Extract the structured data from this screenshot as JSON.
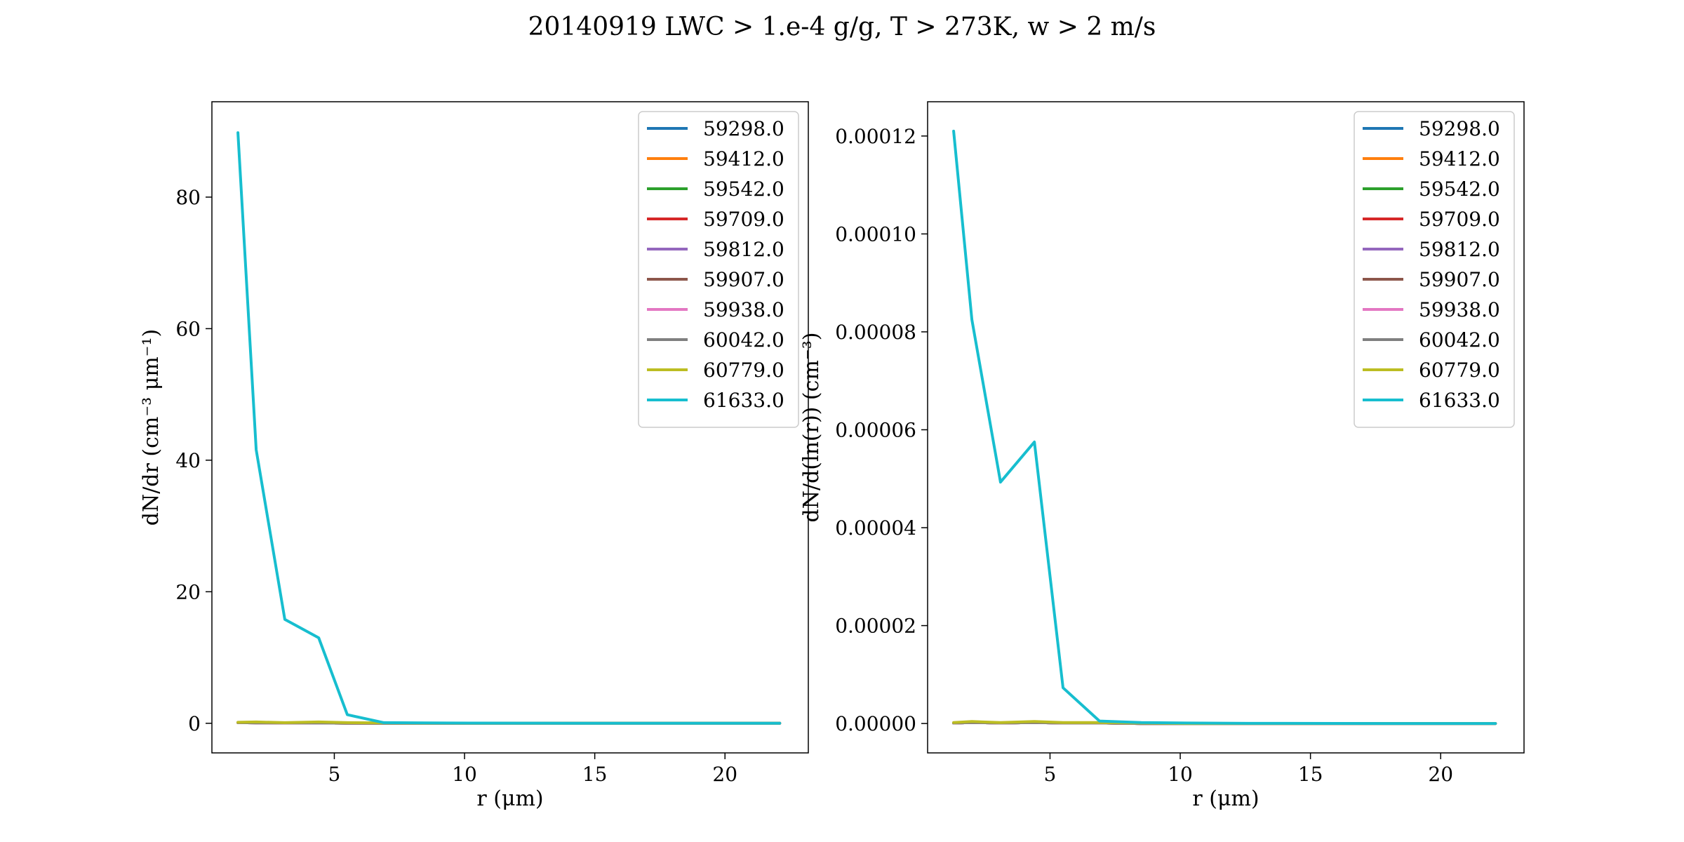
{
  "figure": {
    "title": "20140919 LWC > 1.e-4 g/g, T > 273K, w > 2 m/s"
  },
  "series_colors": [
    "#1f77b4",
    "#ff7f0e",
    "#2ca02c",
    "#d62728",
    "#9467bd",
    "#8c564b",
    "#e377c2",
    "#7f7f7f",
    "#bcbd22",
    "#17becf"
  ],
  "chart_data": [
    {
      "type": "line",
      "xlabel": "r (μm)",
      "ylabel": "dN/dr (cm⁻³ μm⁻¹)",
      "xlim": [
        0.3,
        23.2
      ],
      "ylim": [
        -4.5,
        94.5
      ],
      "xticks": [
        5,
        10,
        15,
        20
      ],
      "xtick_labels": [
        "5",
        "10",
        "15",
        "20"
      ],
      "yticks": [
        0,
        20,
        40,
        60,
        80
      ],
      "ytick_labels": [
        "0",
        "20",
        "40",
        "60",
        "80"
      ],
      "legend_position": "top-right",
      "x": [
        1.3,
        2.0,
        3.1,
        4.4,
        5.5,
        6.9,
        8.5,
        10.2,
        12.0,
        14.0,
        16.0,
        18.0,
        20.0,
        22.1
      ],
      "series": [
        {
          "name": "59298.0",
          "values": [
            0.1,
            0.1,
            0.05,
            0.05,
            0.02,
            0.01,
            0,
            0,
            0,
            0,
            0,
            0,
            0,
            0
          ]
        },
        {
          "name": "59412.0",
          "values": [
            0.1,
            0.08,
            0.05,
            0.04,
            0.02,
            0.01,
            0,
            0,
            0,
            0,
            0,
            0,
            0,
            0
          ]
        },
        {
          "name": "59542.0",
          "values": [
            0.1,
            0.08,
            0.05,
            0.04,
            0.02,
            0.01,
            0,
            0,
            0,
            0,
            0,
            0,
            0,
            0
          ]
        },
        {
          "name": "59709.0",
          "values": [
            0.1,
            0.08,
            0.05,
            0.04,
            0.02,
            0.01,
            0,
            0,
            0,
            0,
            0,
            0,
            0,
            0
          ]
        },
        {
          "name": "59812.0",
          "values": [
            0.1,
            0.08,
            0.05,
            0.04,
            0.02,
            0.01,
            0,
            0,
            0,
            0,
            0,
            0,
            0,
            0
          ]
        },
        {
          "name": "59907.0",
          "values": [
            0.1,
            0.08,
            0.05,
            0.04,
            0.02,
            0.01,
            0,
            0,
            0,
            0,
            0,
            0,
            0,
            0
          ]
        },
        {
          "name": "59938.0",
          "values": [
            0.1,
            0.08,
            0.05,
            0.04,
            0.02,
            0.01,
            0,
            0,
            0,
            0,
            0,
            0,
            0,
            0
          ]
        },
        {
          "name": "60042.0",
          "values": [
            0.1,
            0.08,
            0.05,
            0.04,
            0.02,
            0.01,
            0,
            0,
            0,
            0,
            0,
            0,
            0,
            0
          ]
        },
        {
          "name": "60779.0",
          "values": [
            0.15,
            0.2,
            0.1,
            0.2,
            0.1,
            0.05,
            0.02,
            0.01,
            0,
            0,
            0,
            0,
            0,
            0
          ]
        },
        {
          "name": "61633.0",
          "values": [
            89.8,
            41.6,
            15.8,
            13.0,
            1.3,
            0.1,
            0.05,
            0.03,
            0.02,
            0.01,
            0.01,
            0,
            0,
            0
          ]
        }
      ]
    },
    {
      "type": "line",
      "xlabel": "r (μm)",
      "ylabel": "dN/d(ln(r)) (cm⁻³)",
      "xlim": [
        0.3,
        23.2
      ],
      "ylim": [
        -6e-06,
        0.000127
      ],
      "xticks": [
        5,
        10,
        15,
        20
      ],
      "xtick_labels": [
        "5",
        "10",
        "15",
        "20"
      ],
      "yticks": [
        0,
        2e-05,
        4e-05,
        6e-05,
        8e-05,
        0.0001,
        0.00012
      ],
      "ytick_labels": [
        "0.00000",
        "0.00002",
        "0.00004",
        "0.00006",
        "0.00008",
        "0.00010",
        "0.00012"
      ],
      "legend_position": "top-right",
      "x": [
        1.3,
        2.0,
        3.1,
        4.4,
        5.5,
        6.9,
        8.5,
        10.2,
        12.0,
        14.0,
        16.0,
        18.0,
        20.0,
        22.1
      ],
      "series": [
        {
          "name": "59298.0",
          "values": [
            1e-07,
            2e-07,
            1e-07,
            2e-07,
            1e-07,
            1e-07,
            0,
            0,
            0,
            0,
            0,
            0,
            0,
            0
          ]
        },
        {
          "name": "59412.0",
          "values": [
            1e-07,
            2e-07,
            1e-07,
            2e-07,
            1e-07,
            1e-07,
            0,
            0,
            0,
            0,
            0,
            0,
            0,
            0
          ]
        },
        {
          "name": "59542.0",
          "values": [
            1e-07,
            2e-07,
            1e-07,
            2e-07,
            1e-07,
            1e-07,
            0,
            0,
            0,
            0,
            0,
            0,
            0,
            0
          ]
        },
        {
          "name": "59709.0",
          "values": [
            1e-07,
            2e-07,
            1e-07,
            2e-07,
            1e-07,
            1e-07,
            0,
            0,
            0,
            0,
            0,
            0,
            0,
            0
          ]
        },
        {
          "name": "59812.0",
          "values": [
            1e-07,
            2e-07,
            1e-07,
            2e-07,
            1e-07,
            1e-07,
            0,
            0,
            0,
            0,
            0,
            0,
            0,
            0
          ]
        },
        {
          "name": "59907.0",
          "values": [
            1e-07,
            2e-07,
            1e-07,
            2e-07,
            1e-07,
            1e-07,
            0,
            0,
            0,
            0,
            0,
            0,
            0,
            0
          ]
        },
        {
          "name": "59938.0",
          "values": [
            1e-07,
            2e-07,
            1e-07,
            2e-07,
            1e-07,
            1e-07,
            0,
            0,
            0,
            0,
            0,
            0,
            0,
            0
          ]
        },
        {
          "name": "60042.0",
          "values": [
            1e-07,
            2e-07,
            1e-07,
            2e-07,
            1e-07,
            1e-07,
            0,
            0,
            0,
            0,
            0,
            0,
            0,
            0
          ]
        },
        {
          "name": "60779.0",
          "values": [
            2e-07,
            4e-07,
            2e-07,
            4e-07,
            2e-07,
            2e-07,
            1e-07,
            0,
            0,
            0,
            0,
            0,
            0,
            0
          ]
        },
        {
          "name": "61633.0",
          "values": [
            0.000121,
            8.25e-05,
            4.93e-05,
            5.75e-05,
            7.3e-06,
            5e-07,
            2e-07,
            1e-07,
            5e-08,
            3e-08,
            2e-08,
            1e-08,
            0,
            0
          ]
        }
      ]
    }
  ]
}
